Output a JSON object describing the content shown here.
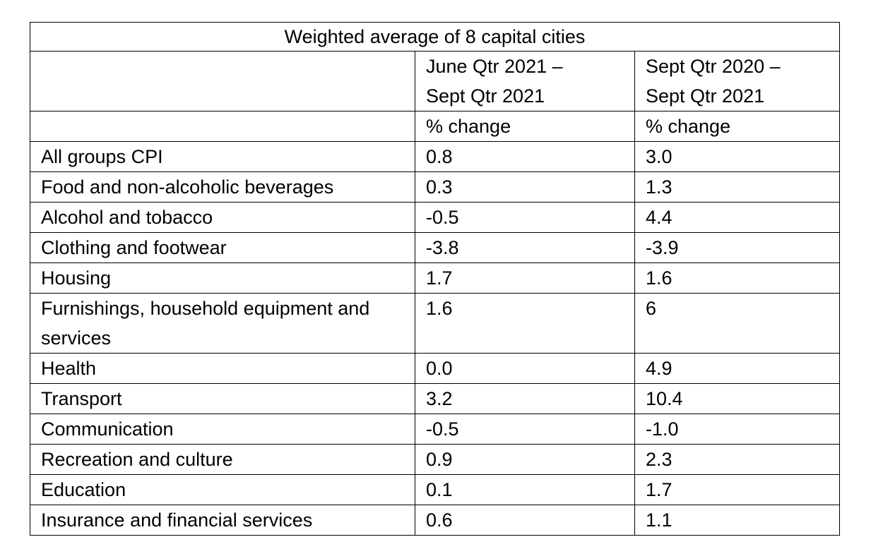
{
  "table": {
    "title": "Weighted average of 8 capital cities",
    "col_headers": [
      {
        "period_line1": "June Qtr 2021 –",
        "period_line2": "Sept Qtr 2021",
        "unit": "% change"
      },
      {
        "period_line1": "Sept Qtr 2020 –",
        "period_line2": "Sept Qtr 2021",
        "unit": "% change"
      }
    ],
    "rows": [
      {
        "label": "All groups CPI",
        "quarterly": "0.8",
        "annual": "3.0"
      },
      {
        "label": "Food and non-alcoholic beverages",
        "quarterly": "0.3",
        "annual": "1.3"
      },
      {
        "label": "Alcohol and tobacco",
        "quarterly": "-0.5",
        "annual": "4.4"
      },
      {
        "label": "Clothing and footwear",
        "quarterly": "-3.8",
        "annual": "-3.9"
      },
      {
        "label": "Housing",
        "quarterly": "1.7",
        "annual": "1.6"
      },
      {
        "label": "Furnishings, household equipment and services",
        "quarterly": "1.6",
        "annual": "6"
      },
      {
        "label": "Health",
        "quarterly": "0.0",
        "annual": "4.9"
      },
      {
        "label": "Transport",
        "quarterly": "3.2",
        "annual": "10.4"
      },
      {
        "label": "Communication",
        "quarterly": "-0.5",
        "annual": "-1.0"
      },
      {
        "label": "Recreation and culture",
        "quarterly": "0.9",
        "annual": "2.3"
      },
      {
        "label": "Education",
        "quarterly": "0.1",
        "annual": "1.7"
      },
      {
        "label": "Insurance and financial services",
        "quarterly": "0.6",
        "annual": "1.1"
      }
    ]
  }
}
